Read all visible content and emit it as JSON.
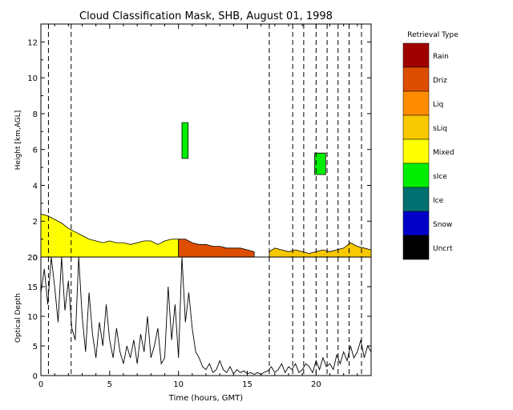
{
  "chart_data": [
    {
      "type": "heatmap",
      "title": "Cloud Classification Mask, SHB, August 01, 1998",
      "xlabel": "",
      "ylabel": "Height [km,AGL]",
      "xlim": [
        0,
        24
      ],
      "ylim": [
        0,
        13
      ],
      "x_ticks": [
        0,
        5,
        10,
        15,
        20
      ],
      "y_ticks": [
        0,
        2,
        4,
        6,
        8,
        10,
        12
      ],
      "y_tick_labels": [
        "0",
        "2",
        "4",
        "6",
        "8",
        "10",
        "12"
      ],
      "dashed_time_markers": [
        0.55,
        2.2,
        16.6,
        18.3,
        19.1,
        20.0,
        20.8,
        21.6,
        22.4,
        23.3
      ],
      "legend": {
        "title": "Retrieval Type",
        "placement": "right",
        "entries": [
          {
            "label": "Rain",
            "color": "#a00000"
          },
          {
            "label": "Driz",
            "color": "#dd4e00"
          },
          {
            "label": "Liq",
            "color": "#ff8c00"
          },
          {
            "label": "sLiq",
            "color": "#f8c800"
          },
          {
            "label": "Mixed",
            "color": "#ffff00"
          },
          {
            "label": "sIce",
            "color": "#00ee00"
          },
          {
            "label": "Ice",
            "color": "#007070"
          },
          {
            "label": "Snow",
            "color": "#0000c8"
          },
          {
            "label": "Uncrt",
            "color": "#000000"
          }
        ]
      },
      "layers": [
        {
          "class": "Mixed",
          "x": [
            0,
            0.5,
            1,
            1.5,
            2,
            2.5,
            3,
            3.5,
            4,
            4.5,
            5,
            5.5,
            6,
            6.5,
            7,
            7.5,
            8,
            8.5,
            9,
            9.5,
            10
          ],
          "top": [
            2.4,
            2.3,
            2.1,
            1.9,
            1.6,
            1.4,
            1.2,
            1.0,
            0.9,
            0.8,
            0.9,
            0.8,
            0.8,
            0.7,
            0.8,
            0.9,
            0.9,
            0.7,
            0.9,
            1.0,
            1.0
          ]
        },
        {
          "class": "Driz",
          "x": [
            10,
            10.5,
            11,
            11.5,
            12,
            12.5,
            13,
            13.5,
            14,
            14.5,
            15,
            15.5
          ],
          "top": [
            1.0,
            1.0,
            0.8,
            0.7,
            0.7,
            0.6,
            0.6,
            0.5,
            0.5,
            0.5,
            0.4,
            0.3
          ]
        },
        {
          "class": "sLiq",
          "x": [
            16.6,
            17,
            17.5,
            18,
            18.5,
            19,
            19.5,
            20,
            20.5,
            21,
            21.5,
            22,
            22.5,
            23,
            23.5,
            24
          ],
          "top": [
            0.3,
            0.5,
            0.4,
            0.3,
            0.4,
            0.3,
            0.2,
            0.3,
            0.4,
            0.3,
            0.4,
            0.5,
            0.8,
            0.6,
            0.5,
            0.4
          ]
        },
        {
          "class": "sIce",
          "x": [
            10.25,
            10.7
          ],
          "top": [
            7.5,
            7.5
          ],
          "bottom": [
            5.5,
            5.5
          ]
        },
        {
          "class": "sIce",
          "x": [
            19.9,
            20.7
          ],
          "top": [
            5.8,
            5.8
          ],
          "bottom": [
            4.6,
            4.6
          ]
        }
      ]
    },
    {
      "type": "line",
      "xlabel": "Time (hours, GMT)",
      "ylabel": "Optical Depth",
      "xlim": [
        0,
        24
      ],
      "ylim": [
        0,
        20
      ],
      "x_ticks": [
        0,
        5,
        10,
        15,
        20
      ],
      "x_tick_labels": [
        "0",
        "5",
        "10",
        "15",
        "20"
      ],
      "y_ticks": [
        0,
        5,
        10,
        15,
        20
      ],
      "y_tick_labels": [
        "0",
        "5",
        "10",
        "15",
        "20"
      ],
      "dashed_time_markers": [
        0.55,
        2.2,
        16.6,
        18.3,
        19.1,
        20.0,
        20.8,
        21.6,
        22.4,
        23.3
      ],
      "series": [
        {
          "x": [
            0,
            0.25,
            0.5,
            0.75,
            1,
            1.25,
            1.5,
            1.75,
            2,
            2.25,
            2.5,
            2.75,
            3,
            3.25,
            3.5,
            3.75,
            4,
            4.25,
            4.5,
            4.75,
            5,
            5.25,
            5.5,
            5.75,
            6,
            6.25,
            6.5,
            6.75,
            7,
            7.25,
            7.5,
            7.75,
            8,
            8.25,
            8.5,
            8.75,
            9,
            9.25,
            9.5,
            9.75,
            10,
            10.25,
            10.5,
            10.75,
            11,
            11.25,
            11.5,
            11.75,
            12,
            12.25,
            12.5,
            12.75,
            13,
            13.25,
            13.5,
            13.75,
            14,
            14.25,
            14.5,
            14.75,
            15,
            15.25,
            15.5,
            15.75,
            16,
            16.25,
            16.5,
            16.75,
            17,
            17.25,
            17.5,
            17.75,
            18,
            18.25,
            18.5,
            18.75,
            19,
            19.25,
            19.5,
            19.75,
            20,
            20.25,
            20.5,
            20.75,
            21,
            21.25,
            21.5,
            21.75,
            22,
            22.25,
            22.5,
            22.75,
            23,
            23.25,
            23.5,
            23.75,
            24
          ],
          "y": [
            14,
            18,
            12,
            20,
            15,
            9,
            20,
            11,
            16,
            8,
            6,
            20,
            10,
            4,
            14,
            7,
            3,
            9,
            5,
            12,
            6,
            3,
            8,
            4,
            2,
            5,
            3,
            6,
            2,
            7,
            4,
            10,
            3,
            5,
            8,
            2,
            3,
            15,
            6,
            12,
            3,
            20,
            9,
            14,
            8,
            4,
            3,
            1.5,
            1,
            2,
            0.5,
            1,
            2.5,
            1,
            0.5,
            1.5,
            0.3,
            1,
            0.5,
            0.8,
            0.3,
            0.5,
            0.2,
            0.5,
            0.2,
            0.6,
            0.8,
            1.5,
            0.5,
            1,
            2,
            0.5,
            1.5,
            1,
            2,
            0.5,
            1,
            2,
            1.5,
            0.5,
            2.5,
            1,
            3,
            1.5,
            2,
            1,
            3.5,
            2,
            4,
            2.5,
            5,
            3,
            4,
            6,
            3,
            5,
            4
          ]
        }
      ]
    }
  ]
}
